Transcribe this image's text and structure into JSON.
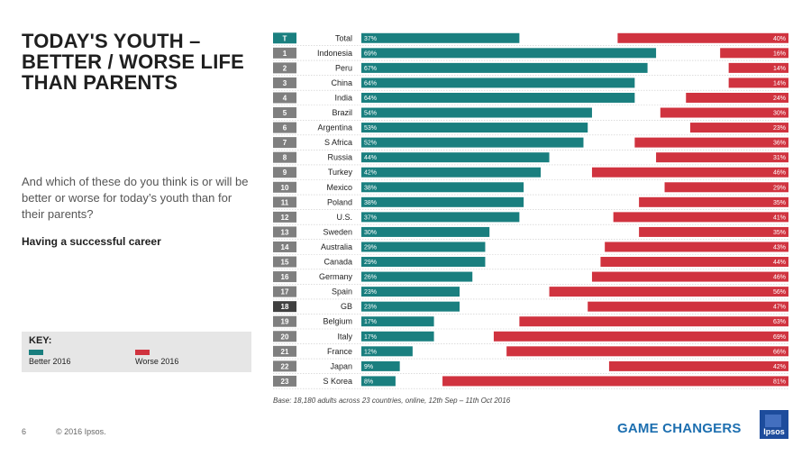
{
  "slide": {
    "title": "TODAY'S YOUTH – BETTER / WORSE LIFE THAN PARENTS",
    "question": "And which of these do you think is or will be better or worse for today’s youth than for their parents?",
    "subtitle": "Having a successful career",
    "base_note": "Base: 18,180 adults across 23 countries, online, 12th Sep – 11th Oct 2016",
    "page_number": "6",
    "copyright": "© 2016 Ipsos.",
    "brand": "GAME CHANGERS",
    "logo_text": "Ipsos"
  },
  "key": {
    "title": "KEY:",
    "better_label": "Better 2016",
    "worse_label": "Worse 2016"
  },
  "colors": {
    "better": "#1a7f7f",
    "worse": "#d0333f",
    "rank_bg": "#7f7f7f",
    "rank_highlight": "#1a7f7f",
    "rank_dark": "#404040"
  },
  "chart_data": {
    "type": "bar",
    "title": "Having a successful career",
    "xlim": [
      0,
      100
    ],
    "ranks": [
      "T",
      "1",
      "2",
      "3",
      "4",
      "5",
      "6",
      "7",
      "8",
      "9",
      "10",
      "11",
      "12",
      "13",
      "14",
      "15",
      "16",
      "17",
      "18",
      "19",
      "20",
      "21",
      "22",
      "23"
    ],
    "categories": [
      "Total",
      "Indonesia",
      "Peru",
      "China",
      "India",
      "Brazil",
      "Argentina",
      "S Africa",
      "Russia",
      "Turkey",
      "Mexico",
      "Poland",
      "U.S.",
      "Sweden",
      "Australia",
      "Canada",
      "Germany",
      "Spain",
      "GB",
      "Belgium",
      "Italy",
      "France",
      "Japan",
      "S Korea"
    ],
    "series": [
      {
        "name": "Better 2016",
        "values": [
          37,
          69,
          67,
          64,
          64,
          54,
          53,
          52,
          44,
          42,
          38,
          38,
          37,
          30,
          29,
          29,
          26,
          23,
          23,
          17,
          17,
          12,
          9,
          8
        ]
      },
      {
        "name": "Worse 2016",
        "values": [
          40,
          16,
          14,
          14,
          24,
          30,
          23,
          36,
          31,
          46,
          29,
          35,
          41,
          35,
          43,
          44,
          46,
          56,
          47,
          63,
          69,
          66,
          42,
          81
        ]
      }
    ]
  }
}
